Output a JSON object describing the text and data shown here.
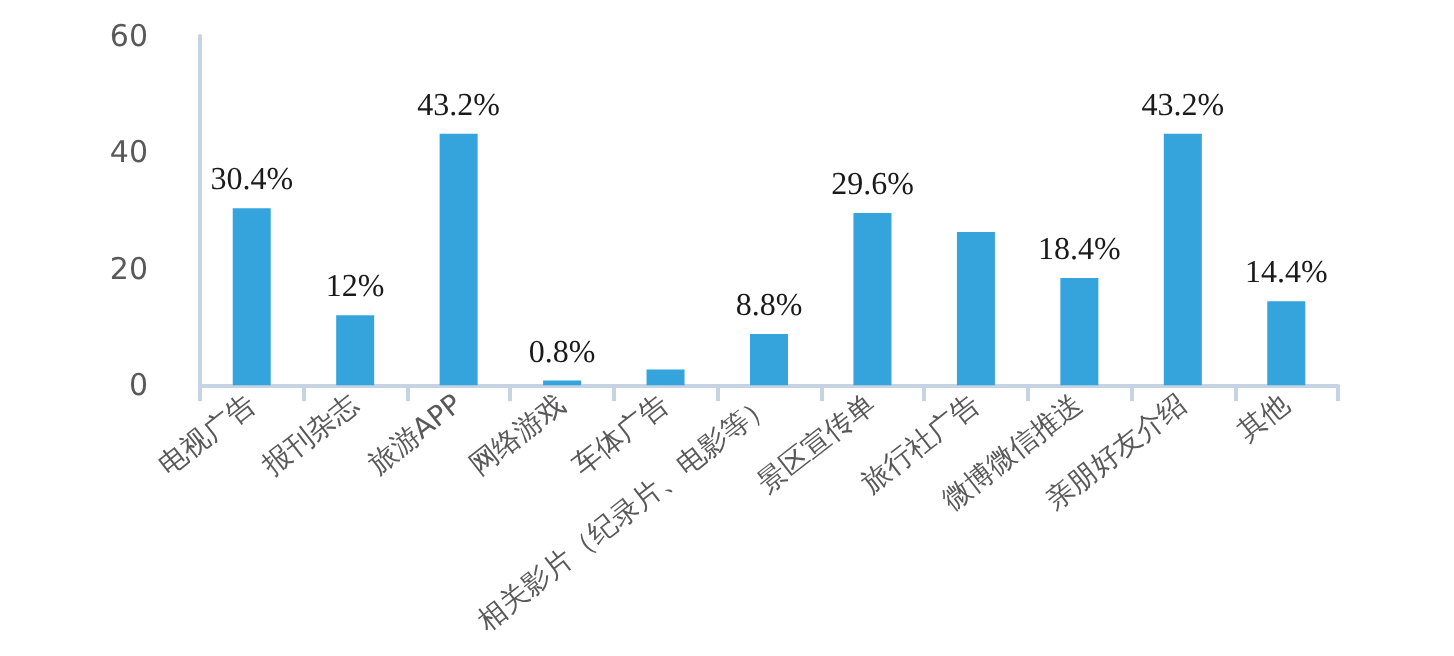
{
  "chart_data": {
    "type": "bar",
    "categories": [
      "电视广告",
      "报刊杂志",
      "旅游APP",
      "网络游戏",
      "车体广告",
      "相关影片（纪录片、电影等）",
      "景区宣传单",
      "旅行社广告",
      "微博微信推送",
      "亲朋好友介绍",
      "其他"
    ],
    "values": [
      30.4,
      12,
      43.2,
      0.8,
      2.7,
      8.8,
      29.6,
      26.3,
      18.4,
      43.2,
      14.4
    ],
    "value_labels": [
      "30.4%",
      "12%",
      "43.2%",
      "0.8%",
      null,
      "8.8%",
      "29.6%",
      null,
      "18.4%",
      "43.2%",
      "14.4%"
    ],
    "color": "#35a4dc",
    "ylim": [
      0,
      60
    ],
    "yticks": [
      0,
      20,
      40,
      60
    ],
    "grid": false
  }
}
